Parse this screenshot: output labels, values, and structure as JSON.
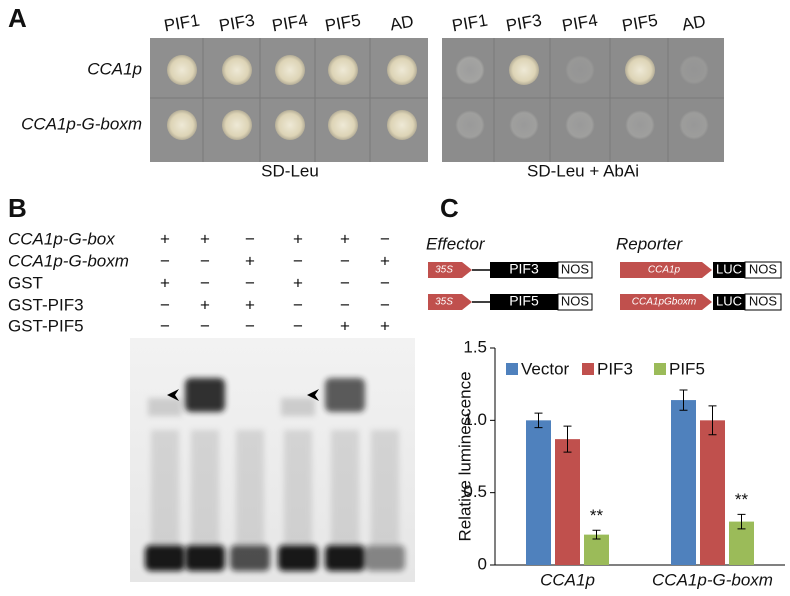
{
  "panel_a": {
    "label": "A",
    "left_columns": [
      "PIF1",
      "PIF3",
      "PIF4",
      "PIF5",
      "AD"
    ],
    "right_columns": [
      "PIF1",
      "PIF3",
      "PIF4",
      "PIF5",
      "AD"
    ],
    "rows": [
      "CCA1p",
      "CCA1p-G-boxm"
    ],
    "left_caption": "SD-Leu",
    "right_caption": "SD-Leu + AbAi"
  },
  "panel_b": {
    "label": "B",
    "rows": [
      {
        "label": "CCA1p-G-box",
        "lanes": [
          "+",
          "+",
          "−",
          "+",
          "+",
          "−"
        ]
      },
      {
        "label": "CCA1p-G-boxm",
        "lanes": [
          "−",
          "−",
          "+",
          "−",
          "−",
          "+"
        ]
      },
      {
        "label": "GST",
        "lanes": [
          "+",
          "−",
          "−",
          "+",
          "−",
          "−"
        ]
      },
      {
        "label": "GST-PIF3",
        "lanes": [
          "−",
          "+",
          "+",
          "−",
          "−",
          "−"
        ]
      },
      {
        "label": "GST-PIF5",
        "lanes": [
          "−",
          "−",
          "−",
          "−",
          "+",
          "+"
        ]
      }
    ]
  },
  "panel_c": {
    "label": "C",
    "effector": {
      "title": "Effector",
      "constructs": [
        [
          "35S",
          "PIF3",
          "NOS"
        ],
        [
          "35S",
          "PIF5",
          "NOS"
        ]
      ]
    },
    "reporter": {
      "title": "Reporter",
      "constructs": [
        [
          "CCA1p",
          "LUC",
          "NOS"
        ],
        [
          "CCA1pGboxm",
          "LUC",
          "NOS"
        ]
      ]
    }
  },
  "chart_data": {
    "type": "bar",
    "y_label": "Relative luminescence",
    "categories": [
      "CCA1p",
      "CCA1p-G-boxm"
    ],
    "series": [
      {
        "name": "Vector",
        "color": "#4f81bd",
        "values": [
          1.0,
          1.14
        ],
        "errors": [
          0.05,
          0.07
        ]
      },
      {
        "name": "PIF3",
        "color": "#c0504d",
        "values": [
          0.87,
          1.0
        ],
        "errors": [
          0.09,
          0.1
        ]
      },
      {
        "name": "PIF5",
        "color": "#9bbb59",
        "values": [
          0.21,
          0.3
        ],
        "errors": [
          0.03,
          0.05
        ],
        "significance": [
          "**",
          "**"
        ]
      }
    ],
    "ylim": [
      0,
      1.5
    ],
    "yticks": [
      0,
      0.5,
      {
        "value": 1,
        "label": "1.0"
      },
      1.5
    ],
    "grid": false,
    "legend": "top"
  }
}
